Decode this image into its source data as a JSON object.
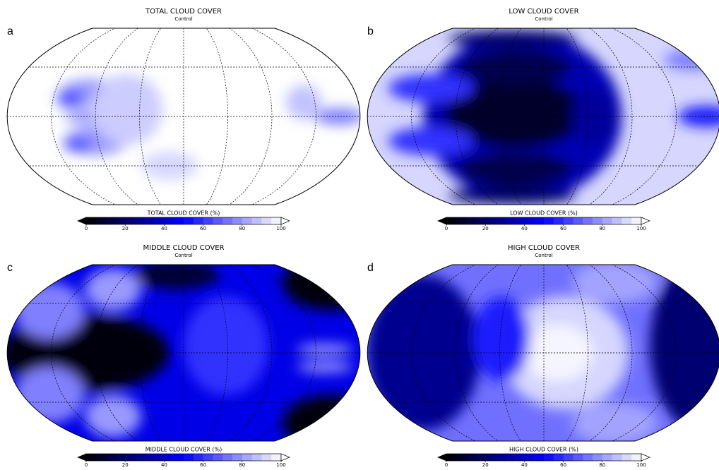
{
  "chart_data": [
    {
      "type": "contour",
      "panel": "a",
      "title": "TOTAL CLOUD COVER",
      "subtitle": "Control",
      "colorbar_label": "TOTAL CLOUD COVER (%)",
      "clim": [
        0,
        100
      ],
      "cticks": [
        0,
        20,
        40,
        60,
        80,
        100
      ],
      "colors": [
        "#000000",
        "#0000ff",
        "#ffffff"
      ]
    },
    {
      "type": "contour",
      "panel": "b",
      "title": "LOW CLOUD COVER",
      "subtitle": "Control",
      "colorbar_label": "LOW CLOUD COVER (%)",
      "clim": [
        0,
        100
      ],
      "cticks": [
        0,
        20,
        40,
        60,
        80,
        100
      ],
      "colors": [
        "#000000",
        "#0000ff",
        "#ffffff"
      ]
    },
    {
      "type": "contour",
      "panel": "c",
      "title": "MIDDLE CLOUD COVER",
      "subtitle": "Control",
      "colorbar_label": "MIDDLE CLOUD COVER (%)",
      "clim": [
        0,
        100
      ],
      "cticks": [
        0,
        20,
        40,
        60,
        80,
        100
      ],
      "colors": [
        "#000000",
        "#0000ff",
        "#ffffff"
      ]
    },
    {
      "type": "contour",
      "panel": "d",
      "title": "HIGH CLOUD COVER",
      "subtitle": "Control",
      "colorbar_label": "HIGH CLOUD COVER (%)",
      "clim": [
        0,
        100
      ],
      "cticks": [
        0,
        20,
        40,
        60,
        80,
        100
      ],
      "colors": [
        "#000000",
        "#0000ff",
        "#ffffff"
      ]
    }
  ]
}
